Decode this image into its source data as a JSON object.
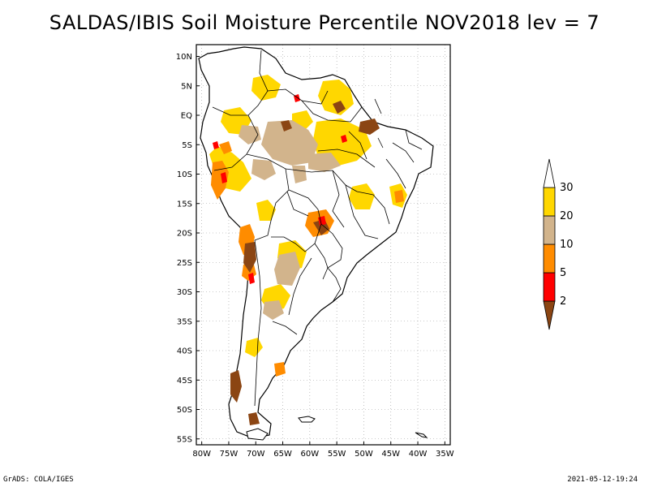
{
  "title": "SALDAS/IBIS Soil Moisture Percentile NOV2018 lev = 7",
  "footer": {
    "left": "GrADS: COLA/IGES",
    "right": "2021-05-12-19:24"
  },
  "map": {
    "lon_range": [
      -81,
      -34
    ],
    "lat_range": [
      -56,
      12
    ],
    "lat_ticks": [
      {
        "value": 10,
        "label": "10N"
      },
      {
        "value": 5,
        "label": "5N"
      },
      {
        "value": 0,
        "label": "EQ"
      },
      {
        "value": -5,
        "label": "5S"
      },
      {
        "value": -10,
        "label": "10S"
      },
      {
        "value": -15,
        "label": "15S"
      },
      {
        "value": -20,
        "label": "20S"
      },
      {
        "value": -25,
        "label": "25S"
      },
      {
        "value": -30,
        "label": "30S"
      },
      {
        "value": -35,
        "label": "35S"
      },
      {
        "value": -40,
        "label": "40S"
      },
      {
        "value": -45,
        "label": "45S"
      },
      {
        "value": -50,
        "label": "50S"
      },
      {
        "value": -55,
        "label": "55S"
      }
    ],
    "lon_ticks": [
      {
        "value": -80,
        "label": "80W"
      },
      {
        "value": -75,
        "label": "75W"
      },
      {
        "value": -70,
        "label": "70W"
      },
      {
        "value": -65,
        "label": "65W"
      },
      {
        "value": -60,
        "label": "60W"
      },
      {
        "value": -55,
        "label": "55W"
      },
      {
        "value": -50,
        "label": "50W"
      },
      {
        "value": -45,
        "label": "45W"
      },
      {
        "value": -40,
        "label": "40W"
      },
      {
        "value": -35,
        "label": "35W"
      }
    ],
    "grid": "dotted"
  },
  "legend": {
    "placement": "right",
    "bins": [
      {
        "range": "<2",
        "color": "#8b4513"
      },
      {
        "range": "2-5",
        "color": "#ff0000"
      },
      {
        "range": "5-10",
        "color": "#ff8c00"
      },
      {
        "range": "10-20",
        "color": "#d2b48c"
      },
      {
        "range": "20-30",
        "color": "#ffd700"
      },
      {
        "range": ">30",
        "color": "#ffffff"
      }
    ],
    "labels": [
      "2",
      "5",
      "10",
      "20",
      "30"
    ]
  }
}
